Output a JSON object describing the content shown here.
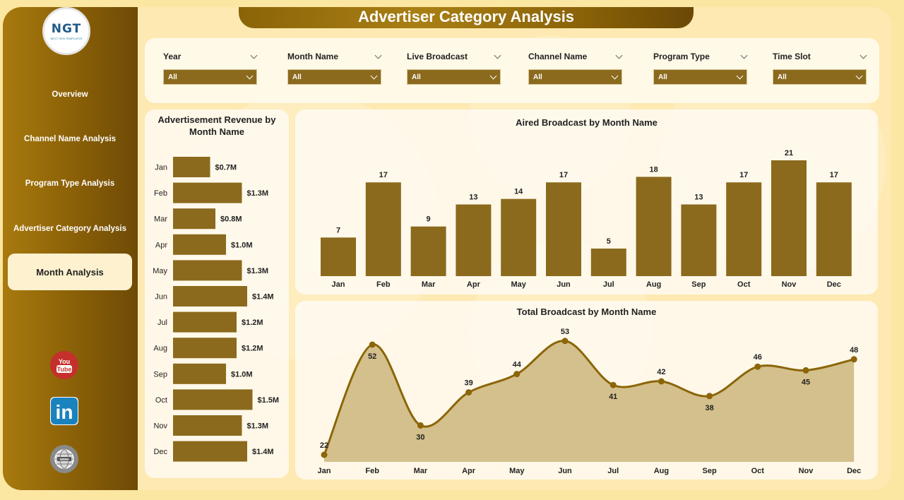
{
  "title": "Advertiser Category Analysis",
  "logo": {
    "text": "NGT",
    "subtext": "NEXT GEN TEMPLATES"
  },
  "nav": [
    {
      "label": "Overview",
      "active": false
    },
    {
      "label": "Channel Name Analysis",
      "active": false
    },
    {
      "label": "Program Type Analysis",
      "active": false
    },
    {
      "label": "Advertiser Category Analysis",
      "active": false
    },
    {
      "label": "Month Analysis",
      "active": true
    }
  ],
  "social": [
    {
      "icon": "youtube-icon",
      "text": "You Tube",
      "color": "#c4302b"
    },
    {
      "icon": "linkedin-icon",
      "text": "in",
      "color": "#1a83bd"
    },
    {
      "icon": "globe-icon",
      "text": "",
      "color": "#8a8a8a"
    }
  ],
  "filters": [
    {
      "label": "Year",
      "value": "All"
    },
    {
      "label": "Month Name",
      "value": "All"
    },
    {
      "label": "Live Broadcast",
      "value": "All"
    },
    {
      "label": "Channel Name",
      "value": "All"
    },
    {
      "label": "Program Type",
      "value": "All"
    },
    {
      "label": "Time Slot",
      "value": "All"
    }
  ],
  "colors": {
    "accent": "#8b6a1e",
    "sidebar": "#8f6408",
    "area_fill": "#d4c08c",
    "line": "#8b6508"
  },
  "chart_data": [
    {
      "type": "bar",
      "orientation": "horizontal",
      "title": "Advertisement Revenue by Month Name",
      "categories": [
        "Jan",
        "Feb",
        "Mar",
        "Apr",
        "May",
        "Jun",
        "Jul",
        "Aug",
        "Sep",
        "Oct",
        "Nov",
        "Dec"
      ],
      "values": [
        0.7,
        1.3,
        0.8,
        1.0,
        1.3,
        1.4,
        1.2,
        1.2,
        1.0,
        1.5,
        1.3,
        1.4
      ],
      "labels": [
        "$0.7M",
        "$1.3M",
        "$0.8M",
        "$1.0M",
        "$1.3M",
        "$1.4M",
        "$1.2M",
        "$1.2M",
        "$1.0M",
        "$1.5M",
        "$1.3M",
        "$1.4M"
      ]
    },
    {
      "type": "bar",
      "title": "Aired Broadcast by Month Name",
      "categories": [
        "Jan",
        "Feb",
        "Mar",
        "Apr",
        "May",
        "Jun",
        "Jul",
        "Aug",
        "Sep",
        "Oct",
        "Nov",
        "Dec"
      ],
      "values": [
        7,
        17,
        9,
        13,
        14,
        17,
        5,
        18,
        13,
        17,
        21,
        17
      ]
    },
    {
      "type": "area",
      "title": "Total Broadcast by Month Name",
      "categories": [
        "Jan",
        "Feb",
        "Mar",
        "Apr",
        "May",
        "Jun",
        "Jul",
        "Aug",
        "Sep",
        "Oct",
        "Nov",
        "Dec"
      ],
      "values": [
        22,
        52,
        30,
        39,
        44,
        53,
        41,
        42,
        38,
        46,
        45,
        48
      ]
    }
  ]
}
